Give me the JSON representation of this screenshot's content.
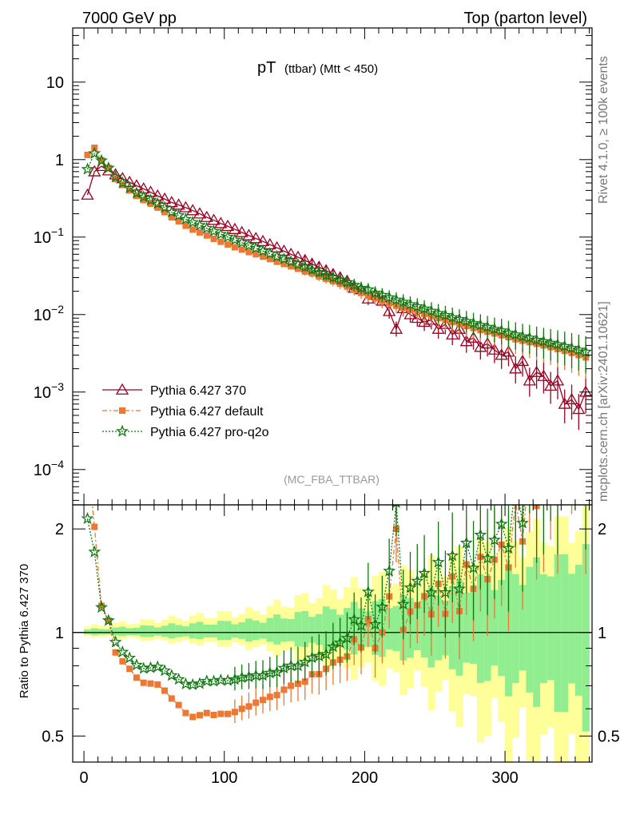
{
  "header": {
    "left": "7000 GeV pp",
    "right": "Top (parton level)"
  },
  "side_labels": {
    "right_top": "Rivet 4.1.0, ≥ 100k events",
    "right_bottom": "mcplots.cern.ch [arXiv:2401.10621]"
  },
  "chart_data": {
    "type": "line",
    "title": "pT",
    "title_sub": "(ttbar) (Mtt < 450)",
    "watermark": "(MC_FBA_TTBAR)",
    "xlabel": "",
    "ylabel": "",
    "xlim": [
      -8,
      362
    ],
    "x_ticks": [
      "0",
      "100",
      "200",
      "300"
    ],
    "x_tick_values": [
      0,
      100,
      200,
      300
    ],
    "main": {
      "yscale": "log",
      "ylim": [
        3.5e-05,
        50
      ],
      "y_ticks": [
        {
          "base": "10",
          "exp": "−4",
          "value": 0.0001
        },
        {
          "base": "10",
          "exp": "−3",
          "value": 0.001
        },
        {
          "base": "10",
          "exp": "−2",
          "value": 0.01
        },
        {
          "base": "10",
          "exp": "−1",
          "value": 0.1
        },
        {
          "base": "1",
          "exp": "",
          "value": 1
        },
        {
          "base": "10",
          "exp": "",
          "value": 10
        }
      ]
    },
    "ratio": {
      "ylabel": "Ratio to Pythia 6.427 370",
      "yscale": "log",
      "ylim": [
        0.42,
        2.35
      ],
      "y_ticks": [
        "0.5",
        "1",
        "2"
      ],
      "y_tick_values": [
        0.5,
        1,
        2
      ],
      "band_inner_halfwidth": [
        0.02,
        0.08,
        0.25,
        0.65
      ],
      "band_outer_halfwidth": [
        0.04,
        0.15,
        0.5,
        1.1
      ]
    },
    "bin_width": 5,
    "x": [
      2.5,
      7.5,
      12.5,
      17.5,
      22.5,
      27.5,
      32.5,
      37.5,
      42.5,
      47.5,
      52.5,
      57.5,
      62.5,
      67.5,
      72.5,
      77.5,
      82.5,
      87.5,
      92.5,
      97.5,
      102.5,
      107.5,
      112.5,
      117.5,
      122.5,
      127.5,
      132.5,
      137.5,
      142.5,
      147.5,
      152.5,
      157.5,
      162.5,
      167.5,
      172.5,
      177.5,
      182.5,
      187.5,
      192.5,
      197.5,
      202.5,
      207.5,
      212.5,
      217.5,
      222.5,
      227.5,
      232.5,
      237.5,
      242.5,
      247.5,
      252.5,
      257.5,
      262.5,
      267.5,
      272.5,
      277.5,
      282.5,
      287.5,
      292.5,
      297.5,
      302.5,
      307.5,
      312.5,
      317.5,
      322.5,
      327.5,
      332.5,
      337.5,
      342.5,
      347.5,
      352.5,
      357.5
    ],
    "series": [
      {
        "name": "Pythia 6.427 370",
        "color": "#990022",
        "marker": "open-triangle",
        "dash": "",
        "values": [
          0.35,
          0.7,
          0.82,
          0.72,
          0.64,
          0.57,
          0.51,
          0.46,
          0.42,
          0.38,
          0.34,
          0.31,
          0.28,
          0.26,
          0.24,
          0.22,
          0.2,
          0.18,
          0.165,
          0.15,
          0.138,
          0.126,
          0.115,
          0.105,
          0.096,
          0.088,
          0.08,
          0.073,
          0.066,
          0.06,
          0.055,
          0.05,
          0.045,
          0.041,
          0.037,
          0.033,
          0.03,
          0.027,
          0.022,
          0.021,
          0.016,
          0.018,
          0.015,
          0.011,
          0.0065,
          0.012,
          0.01,
          0.009,
          0.008,
          0.0085,
          0.0065,
          0.0075,
          0.0055,
          0.0065,
          0.0045,
          0.005,
          0.0038,
          0.0042,
          0.0035,
          0.003,
          0.0033,
          0.002,
          0.0025,
          0.0014,
          0.0018,
          0.0016,
          0.0012,
          0.0014,
          0.0007,
          0.0008,
          0.0006,
          0.001
        ]
      },
      {
        "name": "Pythia 6.427 default",
        "color": "#ee7733",
        "marker": "filled-square",
        "dash": "6,3,2,3",
        "values": [
          1.15,
          1.42,
          0.98,
          0.78,
          0.56,
          0.47,
          0.4,
          0.34,
          0.3,
          0.27,
          0.24,
          0.21,
          0.18,
          0.16,
          0.14,
          0.125,
          0.115,
          0.105,
          0.095,
          0.087,
          0.08,
          0.074,
          0.069,
          0.064,
          0.06,
          0.056,
          0.052,
          0.048,
          0.045,
          0.042,
          0.039,
          0.036,
          0.034,
          0.031,
          0.029,
          0.027,
          0.025,
          0.023,
          0.021,
          0.019,
          0.0175,
          0.0162,
          0.015,
          0.014,
          0.013,
          0.0122,
          0.0115,
          0.0108,
          0.0102,
          0.0096,
          0.009,
          0.0085,
          0.008,
          0.0075,
          0.0071,
          0.0067,
          0.0063,
          0.006,
          0.0057,
          0.0054,
          0.0051,
          0.0048,
          0.0046,
          0.0044,
          0.0042,
          0.004,
          0.0038,
          0.0036,
          0.0034,
          0.0032,
          0.003,
          0.0028
        ]
      },
      {
        "name": "Pythia 6.427 pro-q2o",
        "color": "#117711",
        "marker": "open-star",
        "dash": "2,2",
        "values": [
          0.75,
          1.2,
          0.97,
          0.78,
          0.6,
          0.5,
          0.43,
          0.37,
          0.33,
          0.3,
          0.27,
          0.24,
          0.21,
          0.19,
          0.17,
          0.155,
          0.142,
          0.13,
          0.119,
          0.109,
          0.1,
          0.092,
          0.085,
          0.078,
          0.072,
          0.066,
          0.061,
          0.056,
          0.052,
          0.048,
          0.044,
          0.041,
          0.038,
          0.035,
          0.032,
          0.03,
          0.028,
          0.026,
          0.024,
          0.022,
          0.021,
          0.019,
          0.0178,
          0.0166,
          0.0155,
          0.0145,
          0.0135,
          0.0127,
          0.0119,
          0.0111,
          0.0104,
          0.0098,
          0.0092,
          0.0087,
          0.0082,
          0.0077,
          0.0073,
          0.0069,
          0.0065,
          0.0062,
          0.0058,
          0.0055,
          0.0052,
          0.005,
          0.0047,
          0.0045,
          0.0043,
          0.0041,
          0.0039,
          0.0037,
          0.0035,
          0.0033
        ]
      }
    ]
  }
}
